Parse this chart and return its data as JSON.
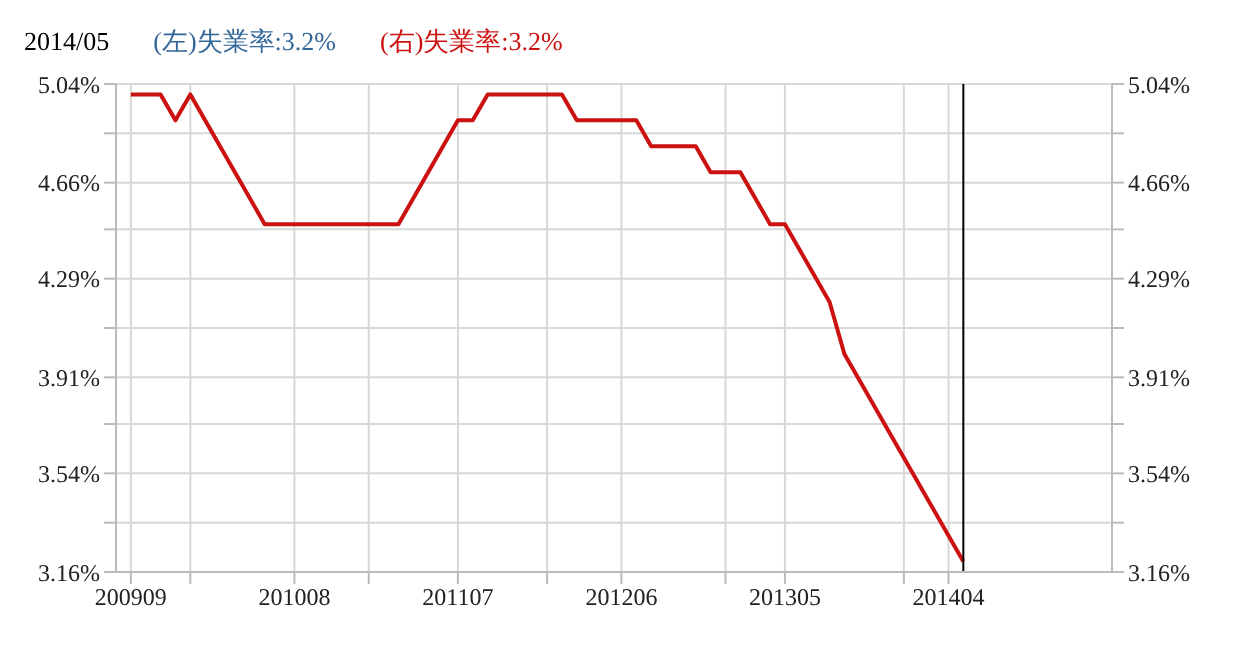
{
  "chart_data": {
    "type": "line",
    "title": "2014/05",
    "x": [
      "2009-09",
      "2009-11",
      "2009-12",
      "2010-01",
      "2010-06",
      "2011-03",
      "2011-07",
      "2011-08",
      "2011-09",
      "2012-02",
      "2012-03",
      "2012-07",
      "2012-08",
      "2012-11",
      "2012-12",
      "2013-02",
      "2013-04",
      "2013-05",
      "2013-08",
      "2013-09",
      "2014-05"
    ],
    "series": [
      {
        "name": "(左)失業率:3.2%",
        "color": "#336699",
        "values": [
          null,
          null,
          null,
          null,
          null,
          null,
          null,
          null,
          null,
          null,
          null,
          null,
          null,
          null,
          null,
          null,
          null,
          null,
          null,
          null,
          null
        ]
      },
      {
        "name": "(右)失業率:3.2%",
        "color": "#cc1111",
        "values": [
          5.0,
          5.0,
          4.9,
          5.0,
          4.5,
          4.5,
          4.9,
          4.9,
          5.0,
          5.0,
          4.9,
          4.9,
          4.8,
          4.8,
          4.7,
          4.7,
          4.5,
          4.5,
          4.2,
          4.0,
          3.2
        ]
      }
    ],
    "xlim": [
      "2009-08",
      "2015-03"
    ],
    "xticks": [
      {
        "value": "2009-09",
        "label": "200909"
      },
      {
        "value": "2010-01",
        "label": null
      },
      {
        "value": "2010-08",
        "label": "201008"
      },
      {
        "value": "2011-01",
        "label": null
      },
      {
        "value": "2011-07",
        "label": "201107"
      },
      {
        "value": "2012-01",
        "label": null
      },
      {
        "value": "2012-06",
        "label": "201206"
      },
      {
        "value": "2013-01",
        "label": null
      },
      {
        "value": "2013-05",
        "label": "201305"
      },
      {
        "value": "2014-01",
        "label": null
      },
      {
        "value": "2014-04",
        "label": "201404"
      }
    ],
    "ylim": [
      3.16,
      5.04
    ],
    "yticks": [
      {
        "value": 3.16,
        "label": "3.16%"
      },
      {
        "value": 3.35,
        "label": null
      },
      {
        "value": 3.54,
        "label": "3.54%"
      },
      {
        "value": 3.73,
        "label": null
      },
      {
        "value": 3.91,
        "label": "3.91%"
      },
      {
        "value": 4.1,
        "label": null
      },
      {
        "value": 4.29,
        "label": "4.29%"
      },
      {
        "value": 4.48,
        "label": null
      },
      {
        "value": 4.66,
        "label": "4.66%"
      },
      {
        "value": 4.85,
        "label": null
      },
      {
        "value": 5.04,
        "label": "5.04%"
      }
    ],
    "y2lim": [
      3.16,
      5.04
    ],
    "y2ticks": [
      {
        "value": 3.16,
        "label": "3.16%"
      },
      {
        "value": 3.35,
        "label": null
      },
      {
        "value": 3.54,
        "label": "3.54%"
      },
      {
        "value": 3.73,
        "label": null
      },
      {
        "value": 3.91,
        "label": "3.91%"
      },
      {
        "value": 4.1,
        "label": null
      },
      {
        "value": 4.29,
        "label": "4.29%"
      },
      {
        "value": 4.48,
        "label": null
      },
      {
        "value": 4.66,
        "label": "4.66%"
      },
      {
        "value": 4.85,
        "label": null
      },
      {
        "value": 5.04,
        "label": "5.04%"
      }
    ],
    "ref_lines": [
      {
        "axis": "x",
        "value": "2014-05",
        "color": "#000000"
      }
    ],
    "grid": true,
    "legend": "top left",
    "marker": "none",
    "line_style": "solid"
  }
}
